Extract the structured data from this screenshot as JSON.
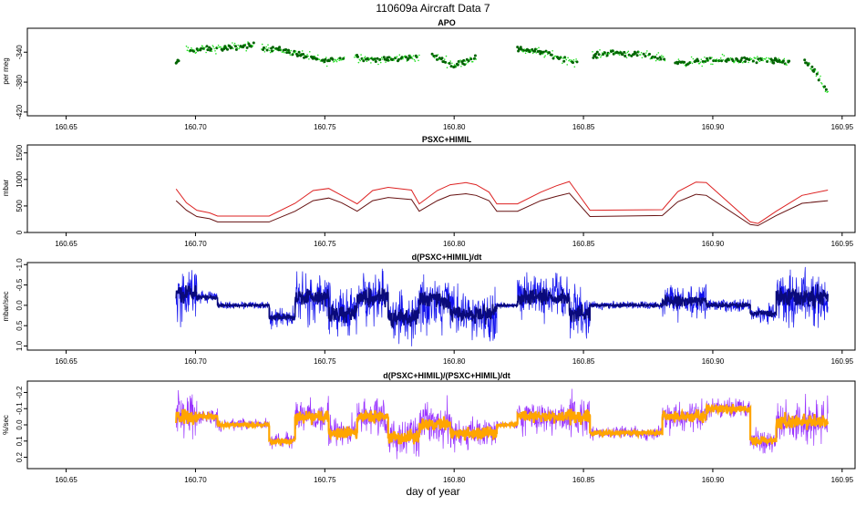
{
  "figure": {
    "title": "110609a   Aircraft Data 7",
    "xlabel": "day of year"
  },
  "chart_data": [
    {
      "type": "scatter",
      "title": "APO",
      "ylabel": "per meg",
      "xlim": [
        160.635,
        160.955
      ],
      "ylim": [
        -425,
        -308
      ],
      "y_reversed": false,
      "xticks": [
        "160.65",
        "160.70",
        "160.75",
        "160.80",
        "160.85",
        "160.90",
        "160.95"
      ],
      "yticks": [
        "-340",
        "-380",
        "-420"
      ],
      "colors": {
        "light": "#22e022",
        "dark": "#006400"
      },
      "segments": [
        {
          "x0": 160.6925,
          "x1": 160.6935,
          "y": [
            -356,
            -350
          ]
        },
        {
          "x0": 160.6965,
          "x1": 160.7225,
          "y": [
            -338,
            -336,
            -335,
            -333,
            -331
          ]
        },
        {
          "x0": 160.7255,
          "x1": 160.7575,
          "y": [
            -333,
            -337,
            -344,
            -352,
            -348
          ]
        },
        {
          "x0": 160.7615,
          "x1": 160.7865,
          "y": [
            -345,
            -350,
            -350,
            -348,
            -346
          ]
        },
        {
          "x0": 160.7915,
          "x1": 160.8085,
          "y": [
            -345,
            -350,
            -358,
            -352,
            -346
          ]
        },
        {
          "x0": 160.8245,
          "x1": 160.8475,
          "y": [
            -336,
            -338,
            -342,
            -348,
            -354
          ]
        },
        {
          "x0": 160.8535,
          "x1": 160.8815,
          "y": [
            -345,
            -340,
            -342,
            -345,
            -348
          ]
        },
        {
          "x0": 160.8855,
          "x1": 160.9295,
          "y": [
            -354,
            -352,
            -350,
            -351,
            -353
          ]
        },
        {
          "x0": 160.9355,
          "x1": 160.9445,
          "y": [
            -352,
            -362,
            -378,
            -395
          ]
        }
      ]
    },
    {
      "type": "line",
      "title": "PSXC+HIMIL",
      "ylabel": "mbar",
      "xlim": [
        160.635,
        160.955
      ],
      "ylim": [
        0,
        1650
      ],
      "y_reversed": false,
      "xticks": [
        "160.65",
        "160.70",
        "160.75",
        "160.80",
        "160.85",
        "160.90",
        "160.95"
      ],
      "yticks": [
        "0",
        "500",
        "1000",
        "1500"
      ],
      "x": [
        160.6925,
        160.6965,
        160.7005,
        160.7055,
        160.7085,
        160.7285,
        160.7385,
        160.7455,
        160.7515,
        160.7565,
        160.7625,
        160.7685,
        160.7745,
        160.7835,
        160.7865,
        160.7935,
        160.7985,
        160.8045,
        160.8085,
        160.8135,
        160.8165,
        160.8245,
        160.8335,
        160.8395,
        160.8445,
        160.8525,
        160.8805,
        160.8865,
        160.8935,
        160.8975,
        160.9145,
        160.9175,
        160.9245,
        160.9345,
        160.9445
      ],
      "series": [
        {
          "name": "",
          "color": "#dd2222",
          "values": [
            820,
            560,
            420,
            370,
            310,
            310,
            550,
            790,
            830,
            700,
            540,
            790,
            850,
            800,
            540,
            790,
            900,
            940,
            900,
            760,
            540,
            540,
            760,
            880,
            960,
            420,
            430,
            770,
            950,
            940,
            200,
            170,
            400,
            700,
            800
          ]
        },
        {
          "name": "",
          "color": "#661111",
          "values": [
            600,
            420,
            300,
            260,
            200,
            200,
            400,
            600,
            650,
            560,
            400,
            600,
            660,
            620,
            400,
            600,
            700,
            730,
            700,
            600,
            400,
            400,
            600,
            680,
            740,
            300,
            320,
            580,
            720,
            700,
            150,
            130,
            320,
            550,
            600
          ]
        }
      ]
    },
    {
      "type": "line",
      "title": "d(PSXC+HIMIL)/dt",
      "ylabel": "mbar/sec",
      "xlim": [
        160.635,
        160.955
      ],
      "ylim": [
        1.1,
        -1.05
      ],
      "y_reversed": true,
      "xticks": [
        "160.65",
        "160.70",
        "160.75",
        "160.80",
        "160.85",
        "160.90",
        "160.95"
      ],
      "yticks": [
        "-1.0",
        "-0.5",
        "0.0",
        "0.5",
        "1.0"
      ],
      "colors": {
        "light": "#1010ee",
        "dark": "#0a0a7a"
      },
      "segments": [
        {
          "x0": 160.6925,
          "x1": 160.7005,
          "y": -0.3,
          "amp": 1.0
        },
        {
          "x0": 160.7005,
          "x1": 160.7085,
          "y": -0.2,
          "amp": 0.25
        },
        {
          "x0": 160.7085,
          "x1": 160.7285,
          "y": 0.0,
          "amp": 0.12
        },
        {
          "x0": 160.7285,
          "x1": 160.7385,
          "y": 0.3,
          "amp": 0.35
        },
        {
          "x0": 160.7385,
          "x1": 160.7515,
          "y": -0.2,
          "amp": 0.9
        },
        {
          "x0": 160.7515,
          "x1": 160.7625,
          "y": 0.2,
          "amp": 0.9
        },
        {
          "x0": 160.7625,
          "x1": 160.7745,
          "y": -0.2,
          "amp": 0.9
        },
        {
          "x0": 160.7745,
          "x1": 160.7865,
          "y": 0.3,
          "amp": 0.9
        },
        {
          "x0": 160.7865,
          "x1": 160.7985,
          "y": -0.1,
          "amp": 1.0
        },
        {
          "x0": 160.7985,
          "x1": 160.8165,
          "y": 0.2,
          "amp": 0.9
        },
        {
          "x0": 160.8165,
          "x1": 160.8245,
          "y": 0.0,
          "amp": 0.1
        },
        {
          "x0": 160.8245,
          "x1": 160.8445,
          "y": -0.2,
          "amp": 0.8
        },
        {
          "x0": 160.8445,
          "x1": 160.8525,
          "y": 0.2,
          "amp": 0.9
        },
        {
          "x0": 160.8525,
          "x1": 160.8805,
          "y": 0.0,
          "amp": 0.15
        },
        {
          "x0": 160.8805,
          "x1": 160.8975,
          "y": -0.1,
          "amp": 0.6
        },
        {
          "x0": 160.8975,
          "x1": 160.9145,
          "y": 0.0,
          "amp": 0.25
        },
        {
          "x0": 160.9145,
          "x1": 160.9245,
          "y": 0.2,
          "amp": 0.3
        },
        {
          "x0": 160.9245,
          "x1": 160.9445,
          "y": -0.2,
          "amp": 1.0
        }
      ]
    },
    {
      "type": "line",
      "title": "d(PSXC+HIMIL)/(PSXC+HIMIL)/dt",
      "ylabel": "%/sec",
      "xlim": [
        160.635,
        160.955
      ],
      "ylim": [
        0.27,
        -0.27
      ],
      "y_reversed": true,
      "xticks": [
        "160.65",
        "160.70",
        "160.75",
        "160.80",
        "160.85",
        "160.90",
        "160.95"
      ],
      "yticks": [
        "-0.2",
        "-0.1",
        "0.0",
        "0.1",
        "0.2"
      ],
      "colors": {
        "light": "#9933ff",
        "dark": "#ffa500"
      },
      "segments": [
        {
          "x0": 160.6925,
          "x1": 160.7005,
          "y": -0.05,
          "amp": 0.2
        },
        {
          "x0": 160.7005,
          "x1": 160.7085,
          "y": -0.05,
          "amp": 0.08
        },
        {
          "x0": 160.7085,
          "x1": 160.7285,
          "y": 0.0,
          "amp": 0.05
        },
        {
          "x0": 160.7285,
          "x1": 160.7385,
          "y": 0.1,
          "amp": 0.08
        },
        {
          "x0": 160.7385,
          "x1": 160.7515,
          "y": -0.05,
          "amp": 0.15
        },
        {
          "x0": 160.7515,
          "x1": 160.7625,
          "y": 0.05,
          "amp": 0.15
        },
        {
          "x0": 160.7625,
          "x1": 160.7745,
          "y": -0.05,
          "amp": 0.15
        },
        {
          "x0": 160.7745,
          "x1": 160.7865,
          "y": 0.08,
          "amp": 0.18
        },
        {
          "x0": 160.7865,
          "x1": 160.7985,
          "y": 0.0,
          "amp": 0.2
        },
        {
          "x0": 160.7985,
          "x1": 160.8165,
          "y": 0.05,
          "amp": 0.15
        },
        {
          "x0": 160.8165,
          "x1": 160.8245,
          "y": 0.0,
          "amp": 0.03
        },
        {
          "x0": 160.8245,
          "x1": 160.8445,
          "y": -0.05,
          "amp": 0.15
        },
        {
          "x0": 160.8445,
          "x1": 160.8525,
          "y": -0.05,
          "amp": 0.2
        },
        {
          "x0": 160.8525,
          "x1": 160.8805,
          "y": 0.05,
          "amp": 0.06
        },
        {
          "x0": 160.8805,
          "x1": 160.8975,
          "y": -0.05,
          "amp": 0.15
        },
        {
          "x0": 160.8975,
          "x1": 160.9145,
          "y": -0.1,
          "amp": 0.1
        },
        {
          "x0": 160.9145,
          "x1": 160.9245,
          "y": 0.1,
          "amp": 0.1
        },
        {
          "x0": 160.9245,
          "x1": 160.9445,
          "y": -0.02,
          "amp": 0.18
        }
      ]
    }
  ]
}
